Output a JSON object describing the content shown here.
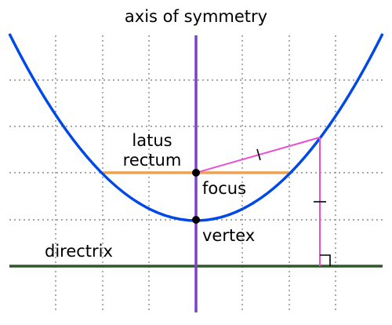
{
  "labels": {
    "axis": "axis of symmetry",
    "latus_line1": "latus",
    "latus_line2": "rectum",
    "focus": "focus",
    "vertex": "vertex",
    "directrix": "directrix"
  },
  "colors": {
    "parabola": "#0048e8",
    "axis": "#7a44c8",
    "latus_rectum": "#f0a050",
    "directrix": "#2d5a27",
    "distance": "#e850d0",
    "grid": "#888888",
    "point": "#000000"
  }
}
